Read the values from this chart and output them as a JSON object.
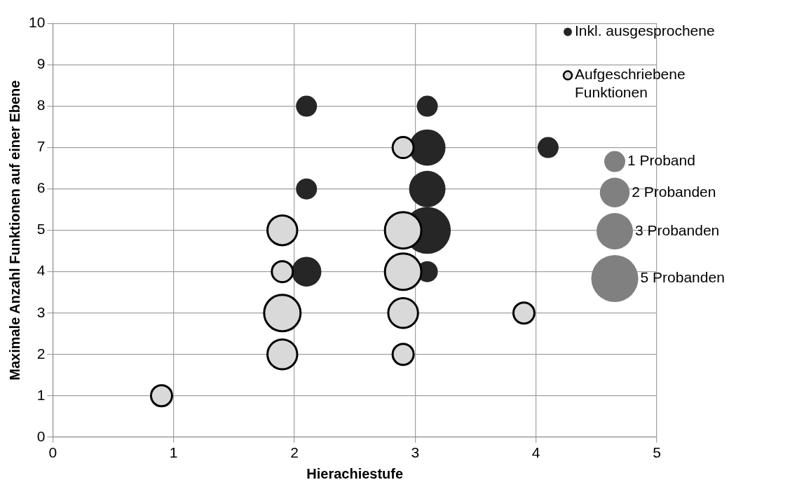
{
  "chart_data": {
    "type": "bubble",
    "xlabel": "Hierachiestufe",
    "ylabel": "Maximale Anzahl Funktionen auf einer Ebene",
    "xlim": [
      0,
      5
    ],
    "xticks": [
      0,
      1,
      2,
      3,
      4,
      5
    ],
    "ylim": [
      0,
      10
    ],
    "yticks": [
      0,
      1,
      2,
      3,
      4,
      5,
      6,
      7,
      8,
      9,
      10
    ],
    "grid": true,
    "legend": "top right",
    "size_legend": [
      {
        "value": 1,
        "label": "1 Proband"
      },
      {
        "value": 2,
        "label": "2 Probanden"
      },
      {
        "value": 3,
        "label": "3 Probanden"
      },
      {
        "value": 5,
        "label": "5 Probanden"
      }
    ],
    "series": [
      {
        "name": "Inkl. ausgesprochene",
        "color": "#262626",
        "x": [
          2.1,
          2.1,
          2.1,
          3.1,
          3.1,
          3.1,
          3.1,
          3.1,
          4.1
        ],
        "values": [
          4,
          6,
          8,
          4,
          5,
          6,
          7,
          8,
          7
        ],
        "sizes": [
          2,
          1,
          1,
          1,
          5,
          3,
          3,
          1,
          1
        ]
      },
      {
        "name": "Aufgeschriebene Funktionen",
        "color": "#d9d9d9",
        "x": [
          0.9,
          1.9,
          1.9,
          1.9,
          1.9,
          2.9,
          2.9,
          2.9,
          2.9,
          2.9,
          3.9
        ],
        "values": [
          1,
          2,
          3,
          4,
          5,
          2,
          3,
          4,
          5,
          7,
          3
        ],
        "sizes": [
          1,
          2,
          3,
          1,
          2,
          1,
          2,
          3,
          3,
          1,
          1
        ]
      }
    ]
  }
}
